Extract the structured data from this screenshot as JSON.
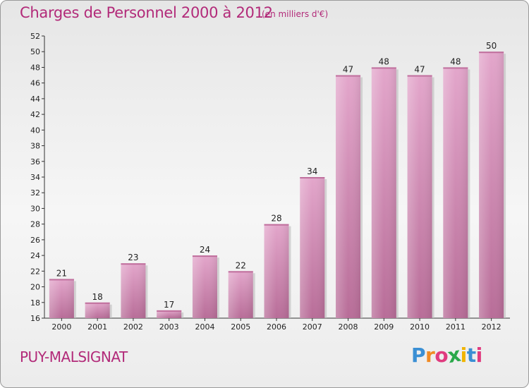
{
  "header": {
    "title": "Charges de Personnel 2000 à 2012",
    "subtitle": "(en milliers d'€)"
  },
  "footer": {
    "commune": "PUY-MALSIGNAT",
    "logo_letters": [
      "P",
      "r",
      "o",
      "x",
      "i",
      "t",
      "i"
    ],
    "logo_colors": [
      "#3a8fd4",
      "#f08a24",
      "#e03b7f",
      "#2aa84a",
      "#f0b400",
      "#3a8fd4",
      "#e03b7f"
    ]
  },
  "chart_data": {
    "type": "bar",
    "categories": [
      "2000",
      "2001",
      "2002",
      "2003",
      "2004",
      "2005",
      "2006",
      "2007",
      "2008",
      "2009",
      "2010",
      "2011",
      "2012"
    ],
    "values": [
      21,
      18,
      23,
      17,
      24,
      22,
      28,
      34,
      47,
      48,
      47,
      48,
      50
    ],
    "title": "Charges de Personnel 2000 à 2012",
    "xlabel": "",
    "ylabel": "",
    "ylim": [
      16,
      52
    ],
    "yticks": [
      16,
      18,
      20,
      22,
      24,
      26,
      28,
      30,
      32,
      34,
      36,
      38,
      40,
      42,
      44,
      46,
      48,
      50,
      52
    ],
    "grid": false,
    "bar_color": "#d58cb7"
  }
}
